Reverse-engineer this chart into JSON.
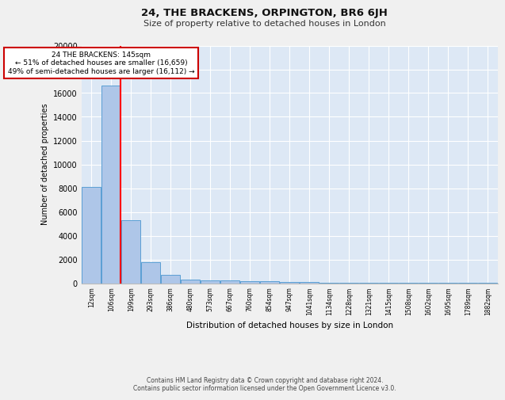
{
  "title1": "24, THE BRACKENS, ORPINGTON, BR6 6JH",
  "title2": "Size of property relative to detached houses in London",
  "xlabel": "Distribution of detached houses by size in London",
  "ylabel": "Number of detached properties",
  "bar_values": [
    8100,
    16600,
    5300,
    1750,
    700,
    300,
    220,
    220,
    170,
    170,
    100,
    80,
    60,
    50,
    40,
    30,
    20,
    15,
    10,
    8,
    5
  ],
  "bar_labels": [
    "12sqm",
    "106sqm",
    "199sqm",
    "293sqm",
    "386sqm",
    "480sqm",
    "573sqm",
    "667sqm",
    "760sqm",
    "854sqm",
    "947sqm",
    "1041sqm",
    "1134sqm",
    "1228sqm",
    "1321sqm",
    "1415sqm",
    "1508sqm",
    "1602sqm",
    "1695sqm",
    "1789sqm",
    "1882sqm"
  ],
  "bar_color": "#aec6e8",
  "bar_edge_color": "#5a9fd4",
  "background_color": "#dde8f5",
  "fig_background_color": "#f0f0f0",
  "grid_color": "#ffffff",
  "red_line_x": 1.45,
  "annotation_title": "24 THE BRACKENS: 145sqm",
  "annotation_line1": "← 51% of detached houses are smaller (16,659)",
  "annotation_line2": "49% of semi-detached houses are larger (16,112) →",
  "annotation_box_color": "#ffffff",
  "annotation_border_color": "#cc0000",
  "ylim": [
    0,
    20000
  ],
  "yticks": [
    0,
    2000,
    4000,
    6000,
    8000,
    10000,
    12000,
    14000,
    16000,
    18000,
    20000
  ],
  "footer1": "Contains HM Land Registry data © Crown copyright and database right 2024.",
  "footer2": "Contains public sector information licensed under the Open Government Licence v3.0."
}
